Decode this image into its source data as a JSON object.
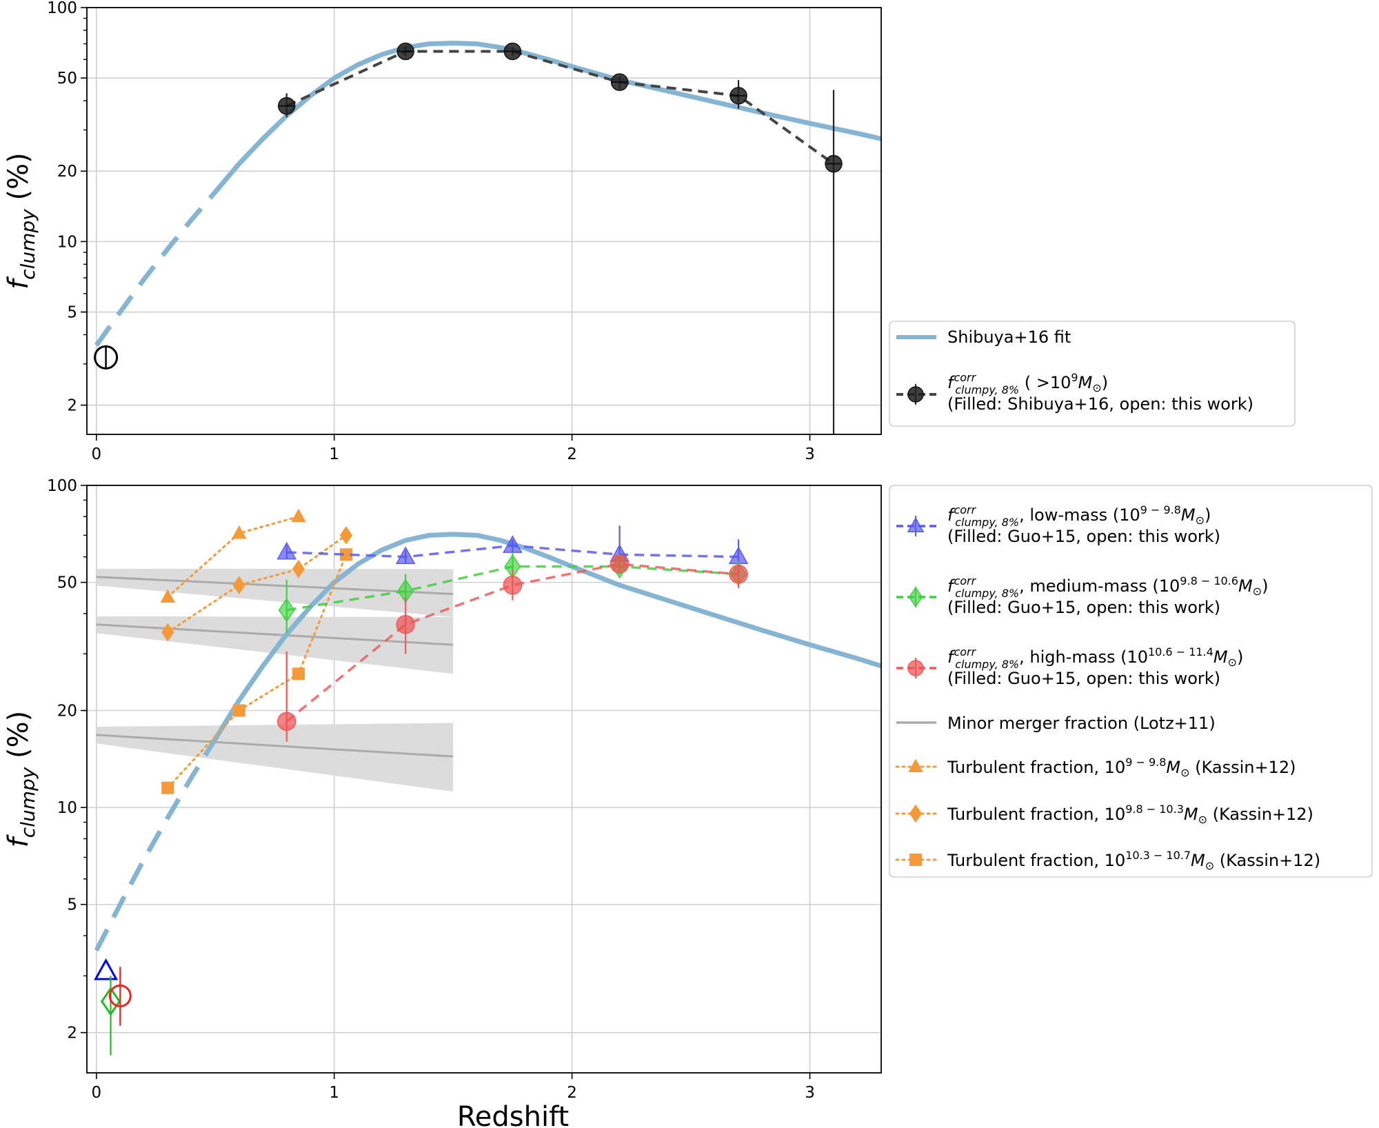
{
  "chart_data": [
    {
      "type": "scatter",
      "panel": "top",
      "ylabel_main": "f",
      "ylabel_sub": "clumpy",
      "ylabel_unit": "(%)",
      "yscale": "log",
      "ylim": [
        1.5,
        100
      ],
      "xlim": [
        -0.04,
        3.3
      ],
      "grid": true,
      "x_ticks": [
        "0",
        "1",
        "2",
        "3"
      ],
      "y_ticks": [
        "2",
        "5",
        "10",
        "20",
        "50",
        "100"
      ],
      "series": [
        {
          "name": "Shibuya+16 fit",
          "color": "#86b5d4",
          "style": "solid line (dashed for z<0.9)",
          "x": [
            0,
            0.1,
            0.2,
            0.3,
            0.4,
            0.5,
            0.6,
            0.7,
            0.8,
            0.9,
            1.0,
            1.1,
            1.2,
            1.3,
            1.4,
            1.5,
            1.6,
            1.7,
            1.8,
            1.9,
            2.0,
            2.2,
            2.4,
            2.6,
            2.8,
            3.0,
            3.2,
            3.3
          ],
          "y": [
            3.6,
            5.0,
            6.9,
            9.3,
            12.4,
            16.3,
            21.5,
            27.5,
            34.5,
            42,
            50,
            57,
            63,
            67.5,
            70,
            70.5,
            70,
            67.5,
            64,
            60,
            56,
            49,
            44,
            39.5,
            35.5,
            32,
            29,
            27.5
          ]
        },
        {
          "name": "f_clumpy,8%^corr (>10^9 M_sun) — Filled: Shibuya+16",
          "color": "#222222",
          "marker": "circle",
          "filled": true,
          "line": "dashed",
          "x": [
            0.8,
            1.3,
            1.75,
            2.2,
            2.7,
            3.1
          ],
          "y": [
            38,
            65,
            65,
            48,
            42,
            21.5
          ],
          "yerr_low": [
            4,
            3,
            3,
            3,
            5,
            20
          ],
          "yerr_high": [
            5,
            3,
            3,
            3,
            7,
            23
          ]
        },
        {
          "name": "f_clumpy,8%^corr (>10^9 M_sun) — open: this work",
          "color": "#000000",
          "marker": "circle",
          "filled": false,
          "x": [
            0.04
          ],
          "y": [
            3.2
          ]
        }
      ],
      "legend": [
        {
          "label": "Shibuya+16 fit"
        },
        {
          "label_main": "f",
          "label_sup": "corr",
          "label_sub": "clumpy, 8%",
          "label_rest": " ( >10",
          "label_exp": "9",
          "label_unit": "M",
          "label_unit_sub": "⊙",
          "label_close": ")",
          "label_line2": "(Filled: Shibuya+16, open: this work)"
        }
      ],
      "legend_placement": "right"
    },
    {
      "type": "scatter",
      "panel": "bottom",
      "xlabel": "Redshift",
      "ylabel_main": "f",
      "ylabel_sub": "clumpy",
      "ylabel_unit": "(%)",
      "yscale": "log",
      "ylim": [
        1.5,
        100
      ],
      "xlim": [
        -0.04,
        3.3
      ],
      "grid": true,
      "x_ticks": [
        "0",
        "1",
        "2",
        "3"
      ],
      "y_ticks": [
        "2",
        "5",
        "10",
        "20",
        "50",
        "100"
      ],
      "series": [
        {
          "name": "Shibuya+16 fit",
          "color": "#86b5d4",
          "style": "solid line (dashed for z<0.9)"
        },
        {
          "name": "low-mass, Filled: Guo+15",
          "color": "#5a5af0",
          "marker": "triangle",
          "filled": true,
          "line": "dashed",
          "x": [
            0.8,
            1.3,
            1.75,
            2.2,
            2.7
          ],
          "y": [
            62,
            60,
            65,
            61,
            60
          ],
          "yerr_low": [
            3,
            3,
            3,
            8,
            6
          ],
          "yerr_high": [
            3,
            3,
            3,
            14,
            8
          ]
        },
        {
          "name": "low-mass, open: this work",
          "color": "#0000ff",
          "marker": "triangle",
          "filled": false,
          "x": [
            0.04
          ],
          "y": [
            3.1
          ]
        },
        {
          "name": "medium-mass, Filled: Guo+15",
          "color": "#44cc44",
          "marker": "diamond",
          "filled": true,
          "line": "dashed",
          "x": [
            0.8,
            1.3,
            1.75,
            2.2,
            2.7
          ],
          "y": [
            41,
            47,
            56,
            56,
            53
          ],
          "yerr_low": [
            6,
            4,
            5,
            3,
            5
          ],
          "yerr_high": [
            10,
            6,
            6,
            3,
            5
          ]
        },
        {
          "name": "medium-mass, open: this work",
          "color": "#22bb22",
          "marker": "diamond",
          "filled": false,
          "x": [
            0.06
          ],
          "y": [
            2.5
          ],
          "yerr_low": [
            0.8
          ],
          "yerr_high": [
            0.5
          ]
        },
        {
          "name": "high-mass, Filled: Guo+15",
          "color": "#f05a5a",
          "marker": "circle",
          "filled": true,
          "line": "dashed",
          "x": [
            0.8,
            1.3,
            1.75,
            2.2,
            2.7
          ],
          "y": [
            18.5,
            37,
            49,
            57,
            53
          ],
          "yerr_low": [
            2.5,
            7,
            5,
            3,
            5
          ],
          "yerr_high": [
            12,
            8,
            6,
            3,
            4
          ]
        },
        {
          "name": "high-mass, open: this work",
          "color": "#ee2222",
          "marker": "circle",
          "filled": false,
          "x": [
            0.1
          ],
          "y": [
            2.6
          ],
          "yerr_low": [
            0.5
          ],
          "yerr_high": [
            0.6
          ]
        },
        {
          "name": "Minor merger fraction (Lotz+11)",
          "color": "#aaaaaa",
          "lines": [
            {
              "x": [
                0,
                1.5
              ],
              "y": [
                52,
                46
              ],
              "band_low_end": 39,
              "band_high_end": 55
            },
            {
              "x": [
                0,
                1.5
              ],
              "y": [
                37,
                32
              ],
              "band_low_end": 26,
              "band_high_end": 39
            },
            {
              "x": [
                0,
                1.5
              ],
              "y": [
                16.8,
                14.4
              ],
              "band_low_end": 11.2,
              "band_high_end": 18.3
            }
          ]
        },
        {
          "name": "Turbulent fraction, 10^9-9.8 M_sun (Kassin+12)",
          "color": "#f59a3a",
          "marker": "triangle",
          "line": "dotted",
          "x": [
            0.3,
            0.6,
            0.85
          ],
          "y": [
            45,
            71,
            80
          ]
        },
        {
          "name": "Turbulent fraction, 10^9.8-10.3 M_sun (Kassin+12)",
          "color": "#f59a3a",
          "marker": "diamond",
          "line": "dotted",
          "x": [
            0.3,
            0.6,
            0.85,
            1.05
          ],
          "y": [
            35,
            49,
            55,
            70
          ]
        },
        {
          "name": "Turbulent fraction, 10^10.3-10.7 M_sun (Kassin+12)",
          "color": "#f59a3a",
          "marker": "square",
          "line": "dotted",
          "x": [
            0.3,
            0.6,
            0.85,
            1.05
          ],
          "y": [
            11.5,
            20,
            26,
            61
          ]
        }
      ],
      "legend": [
        {
          "label_main": "f",
          "label_sup": "corr",
          "label_sub": "clumpy, 8%",
          "label_rest": ", low-mass (10",
          "label_exp": "9 − 9.8",
          "label_unit": "M",
          "label_unit_sub": "⊙",
          "label_close": ")",
          "label_line2": "(Filled: Guo+15, open: this work)"
        },
        {
          "label_main": "f",
          "label_sup": "corr",
          "label_sub": "clumpy, 8%",
          "label_rest": ", medium-mass (10",
          "label_exp": "9.8 − 10.6",
          "label_unit": "M",
          "label_unit_sub": "⊙",
          "label_close": ")",
          "label_line2": "(Filled: Guo+15, open: this work)"
        },
        {
          "label_main": "f",
          "label_sup": "corr",
          "label_sub": "clumpy, 8%",
          "label_rest": ", high-mass (10",
          "label_exp": "10.6 − 11.4",
          "label_unit": "M",
          "label_unit_sub": "⊙",
          "label_close": ")",
          "label_line2": "(Filled: Guo+15, open: this work)"
        },
        {
          "label": "Minor merger fraction (Lotz+11)"
        },
        {
          "label_rest": "Turbulent fraction, 10",
          "label_exp": "9 − 9.8",
          "label_unit": "M",
          "label_unit_sub": "⊙",
          "label_close": " (Kassin+12)"
        },
        {
          "label_rest": "Turbulent fraction, 10",
          "label_exp": "9.8 − 10.3",
          "label_unit": "M",
          "label_unit_sub": "⊙",
          "label_close": " (Kassin+12)"
        },
        {
          "label_rest": "Turbulent fraction, 10",
          "label_exp": "10.3 − 10.7",
          "label_unit": "M",
          "label_unit_sub": "⊙",
          "label_close": " (Kassin+12)"
        }
      ],
      "legend_placement": "right"
    }
  ]
}
